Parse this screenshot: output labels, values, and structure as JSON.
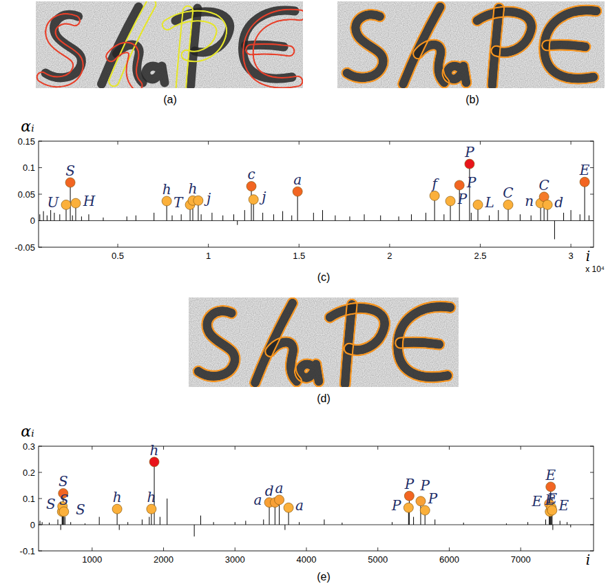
{
  "images": [
    {
      "caption": "(a)"
    },
    {
      "caption": "(b)"
    },
    {
      "caption": "(d)"
    }
  ],
  "chart_data": [
    {
      "type": "stem",
      "caption": "(c)",
      "xlabel": "i",
      "ylabel": "αᵢ",
      "x_multiplier": "x 10⁴",
      "xlim": [
        0.063,
        3.125
      ],
      "ylim": [
        -0.05,
        0.15
      ],
      "xticks": [
        0.5,
        1,
        1.5,
        2,
        2.5,
        3
      ],
      "yticks": [
        -0.05,
        0,
        0.05,
        0.1,
        0.15
      ],
      "series": [
        {
          "color": "#000000",
          "marker": "none",
          "x": [
            0.07,
            0.09,
            0.11,
            0.13,
            0.15,
            0.18,
            0.25,
            0.3,
            0.34,
            0.42,
            0.55,
            0.6,
            0.7,
            0.8,
            0.85,
            0.96,
            1.02,
            1.08,
            1.14,
            1.16,
            1.2,
            1.3,
            1.36,
            1.41,
            1.46,
            1.58,
            1.63,
            1.7,
            1.78,
            1.86,
            1.95,
            2.05,
            2.12,
            2.2,
            2.3,
            2.45,
            2.55,
            2.6,
            2.72,
            2.78,
            2.91,
            2.96,
            3.0,
            3.05,
            3.1
          ],
          "values": [
            0.012,
            0.018,
            0.01,
            0.02,
            0.015,
            0.012,
            0.01,
            0.008,
            0.012,
            0.006,
            0.008,
            0.01,
            0.015,
            0.01,
            0.012,
            0.012,
            0.015,
            0.01,
            0.012,
            -0.008,
            0.02,
            0.015,
            0.012,
            0.018,
            0.01,
            0.015,
            0.02,
            0.01,
            0.008,
            0.012,
            0.01,
            0.008,
            0.012,
            0.015,
            0.012,
            0.015,
            0.01,
            0.02,
            0.012,
            0.01,
            -0.035,
            0.015,
            0.02,
            0.012,
            0.01
          ]
        },
        {
          "marker": "circle",
          "x": [
            0.215,
            0.238,
            0.268,
            0.77,
            0.899,
            0.914,
            0.944,
            1.237,
            1.249,
            1.492,
            2.248,
            2.335,
            2.385,
            2.441,
            2.487,
            2.654,
            2.833,
            2.852,
            2.871,
            3.076
          ],
          "values": [
            0.03,
            0.072,
            0.033,
            0.037,
            0.03,
            0.038,
            0.038,
            0.065,
            0.04,
            0.055,
            0.047,
            0.037,
            0.067,
            0.107,
            0.03,
            0.03,
            0.033,
            0.045,
            0.03,
            0.073
          ],
          "labels": [
            "U",
            "S",
            "H",
            "h",
            "T",
            "h",
            "j",
            "c",
            "j",
            "a",
            "f",
            "P",
            "P",
            "P",
            "L",
            "C",
            "n",
            "C",
            "d",
            "E"
          ],
          "colors": [
            "#fbb03b",
            "#f26522",
            "#fbb03b",
            "#fbb03b",
            "#fbb03b",
            "#fbb03b",
            "#fbb03b",
            "#f26522",
            "#fbb03b",
            "#f26522",
            "#fbb03b",
            "#fbb03b",
            "#f26522",
            "#e8141b",
            "#fbb03b",
            "#fbb03b",
            "#fbb03b",
            "#f47b2a",
            "#fbb03b",
            "#f26522"
          ]
        }
      ]
    },
    {
      "type": "stem",
      "caption": "(e)",
      "xlabel": "i",
      "ylabel": "αᵢ",
      "xlim": [
        250,
        8020
      ],
      "ylim": [
        -0.1,
        0.3
      ],
      "xticks": [
        1000,
        2000,
        3000,
        4000,
        5000,
        6000,
        7000
      ],
      "yticks": [
        -0.1,
        0,
        0.1,
        0.2,
        0.3
      ],
      "series": [
        {
          "color": "#000000",
          "marker": "none",
          "x": [
            270,
            300,
            400,
            520,
            560,
            620,
            700,
            900,
            1100,
            1380,
            1500,
            1700,
            1800,
            1950,
            2050,
            2430,
            2520,
            2700,
            3000,
            3150,
            3400,
            3700,
            3900,
            4250,
            4500,
            5200,
            5500,
            5800,
            6200,
            6800,
            7100,
            7350,
            7450,
            7550,
            7650,
            7700
          ],
          "values": [
            0.015,
            0.01,
            0.008,
            0.02,
            -0.02,
            0.03,
            0.01,
            0.005,
            0.03,
            -0.02,
            0.01,
            0.02,
            0.03,
            0.03,
            0.1,
            -0.045,
            0.035,
            0.01,
            0.01,
            0.015,
            0.02,
            -0.02,
            0.01,
            0.02,
            0.008,
            0.01,
            0.03,
            0.02,
            0.008,
            0.005,
            0.01,
            0.02,
            -0.02,
            0.015,
            0.01,
            -0.01
          ]
        },
        {
          "marker": "circle",
          "x": [
            580,
            585,
            595,
            605,
            1350,
            1830,
            1870,
            3480,
            3560,
            3620,
            3750,
            5430,
            5440,
            5600,
            5660,
            7400,
            7410,
            7420,
            7430,
            7440
          ],
          "values": [
            0.05,
            0.07,
            0.12,
            0.05,
            0.06,
            0.06,
            0.24,
            0.085,
            0.085,
            0.095,
            0.065,
            0.065,
            0.11,
            0.09,
            0.055,
            0.08,
            0.05,
            0.145,
            0.065,
            0.055
          ],
          "labels": [
            "S",
            "S",
            "S",
            "S",
            "h",
            "h",
            "h",
            "d",
            "a",
            "a",
            "a",
            "P",
            "P",
            "P",
            "P",
            "E",
            "E",
            "E",
            "E",
            "E"
          ],
          "colors": [
            "#fbb03b",
            "#fbb03b",
            "#f26522",
            "#fbb03b",
            "#fbb03b",
            "#fbb03b",
            "#e8141b",
            "#f8a035",
            "#f8a035",
            "#f8a035",
            "#fbb03b",
            "#fbb03b",
            "#f26522",
            "#f8a035",
            "#fbb03b",
            "#f8a035",
            "#fbb03b",
            "#f26522",
            "#fbb03b",
            "#fbb03b"
          ]
        }
      ]
    }
  ]
}
